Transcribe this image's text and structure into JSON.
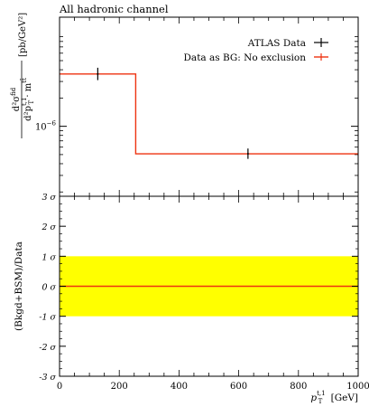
{
  "chart_data": [
    {
      "type": "line",
      "title": "All hadronic channel",
      "ylabel": "d²σ^fid / d²p_T^{t,1} · m^{tt̄} [pb/GeV²]",
      "ylabel_parts": {
        "numerator": "d²σ",
        "num_sup": "fid",
        "denominator": "d²p",
        "den_sub": "T",
        "den_sup": "t,1",
        "times": "· m",
        "m_sup": "tt̄",
        "units": "[pb/GeV²]"
      },
      "yscale": "log",
      "ylim": [
        1.8e-07,
        1.45e-05
      ],
      "yticks": [
        {
          "value": 1e-06,
          "label": "10",
          "exp": "−6"
        }
      ],
      "xlim": [
        0,
        1000
      ],
      "grid": false,
      "legend_position": "top-right",
      "series": [
        {
          "name": "ATLAS Data",
          "color": "#000000",
          "style": "errorbar",
          "points": [
            {
              "x": 128,
              "y": 3.6e-06,
              "ylo": 3.1e-06,
              "yhi": 4.2e-06
            },
            {
              "x": 631,
              "y": 5.1e-07,
              "ylo": 4.5e-07,
              "yhi": 5.8e-07
            }
          ]
        },
        {
          "name": "Data as BG: No exclusion",
          "color": "#ee3311",
          "style": "step",
          "bins": [
            {
              "x0": 0,
              "x1": 255,
              "y": 3.6e-06
            },
            {
              "x0": 255,
              "x1": 1000,
              "y": 5.1e-07
            }
          ]
        }
      ]
    },
    {
      "type": "line",
      "ylabel": "(Bkgd+BSM)/Data",
      "xlabel": "p_T^{t,1} [GeV]",
      "xlabel_parts": {
        "p": "p",
        "sub": "T",
        "sup": "t,1",
        "units": "[GeV]"
      },
      "xlim": [
        0,
        1000
      ],
      "ylim": [
        -3,
        3
      ],
      "xticks": [
        0,
        200,
        400,
        600,
        800,
        1000
      ],
      "yticks": [
        {
          "value": 3,
          "label": "3 σ"
        },
        {
          "value": 2,
          "label": "2 σ"
        },
        {
          "value": 1,
          "label": "1 σ"
        },
        {
          "value": 0,
          "label": "0 σ"
        },
        {
          "value": -1,
          "label": "-1 σ"
        },
        {
          "value": -2,
          "label": "-2 σ"
        },
        {
          "value": -3,
          "label": "-3 σ"
        }
      ],
      "band": {
        "from": -1,
        "to": 1,
        "color": "#ffff00"
      },
      "series": [
        {
          "name": "",
          "color": "#ee3311",
          "x": [
            0,
            1000
          ],
          "y": [
            0,
            0
          ]
        }
      ]
    }
  ]
}
